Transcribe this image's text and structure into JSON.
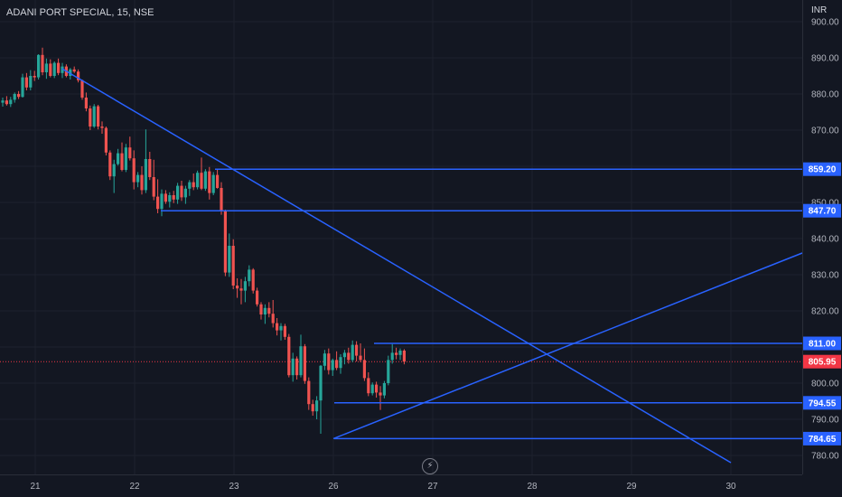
{
  "header": {
    "title": "ADANI PORT SPECIAL, 15, NSE",
    "currency": "INR"
  },
  "icons": {
    "replay": "lightning-icon"
  },
  "colors": {
    "background": "#131722",
    "up": "#26a69a",
    "down": "#ef5350",
    "drawing": "#2962ff",
    "grid": "#1e222d",
    "last_price_line": "#f23645"
  },
  "chart_data": {
    "type": "candlestick",
    "title": "ADANI PORT SPECIAL, 15, NSE",
    "ylabel": "INR",
    "ylim": [
      776,
      903
    ],
    "y_ticks": [
      "780.00",
      "790.00",
      "800.00",
      "810.00",
      "820.00",
      "830.00",
      "840.00",
      "850.00",
      "860.00",
      "870.00",
      "880.00",
      "890.00",
      "900.00"
    ],
    "x_ticks": [
      "21",
      "22",
      "23",
      "26",
      "27",
      "28",
      "29",
      "30"
    ],
    "grid": true,
    "candles": [
      [
        877.6,
        879.0,
        876.5,
        878.2
      ],
      [
        878.2,
        879.4,
        876.8,
        877.2
      ],
      [
        877.2,
        879.2,
        876.4,
        878.4
      ],
      [
        878.4,
        880.4,
        877.6,
        880.0
      ],
      [
        880.0,
        880.8,
        878.6,
        879.2
      ],
      [
        879.2,
        885.6,
        879.0,
        884.6
      ],
      [
        884.6,
        885.8,
        881.0,
        881.8
      ],
      [
        881.8,
        886.6,
        881.0,
        885.0
      ],
      [
        885.0,
        886.4,
        883.6,
        884.6
      ],
      [
        884.6,
        891.0,
        884.0,
        890.8
      ],
      [
        890.8,
        892.8,
        885.2,
        886.0
      ],
      [
        886.0,
        889.8,
        884.2,
        888.4
      ],
      [
        888.4,
        889.6,
        884.6,
        885.0
      ],
      [
        885.0,
        889.0,
        884.4,
        888.6
      ],
      [
        888.6,
        889.8,
        885.2,
        885.8
      ],
      [
        885.8,
        888.6,
        884.4,
        887.6
      ],
      [
        887.6,
        888.2,
        884.6,
        885.0
      ],
      [
        885.0,
        887.2,
        884.0,
        886.8
      ],
      [
        886.8,
        887.6,
        885.8,
        886.2
      ],
      [
        886.2,
        886.8,
        883.2,
        883.8
      ],
      [
        883.8,
        884.0,
        878.4,
        879.0
      ],
      [
        879.0,
        880.4,
        875.2,
        876.0
      ],
      [
        876.0,
        876.8,
        870.0,
        871.0
      ],
      [
        871.0,
        877.2,
        870.6,
        876.6
      ],
      [
        876.6,
        877.0,
        870.2,
        871.0
      ],
      [
        871.0,
        872.4,
        869.0,
        870.6
      ],
      [
        870.6,
        871.0,
        863.0,
        863.8
      ],
      [
        863.8,
        864.4,
        856.2,
        857.2
      ],
      [
        857.2,
        861.8,
        852.6,
        860.6
      ],
      [
        860.6,
        864.8,
        860.2,
        863.6
      ],
      [
        863.6,
        866.6,
        858.6,
        859.0
      ],
      [
        859.0,
        866.2,
        858.4,
        865.2
      ],
      [
        865.2,
        868.2,
        861.6,
        862.2
      ],
      [
        862.2,
        864.4,
        853.6,
        855.6
      ],
      [
        855.6,
        858.4,
        854.2,
        857.6
      ],
      [
        857.6,
        860.0,
        852.2,
        853.4
      ],
      [
        853.4,
        870.2,
        852.6,
        862.0
      ],
      [
        862.0,
        864.0,
        856.2,
        857.0
      ],
      [
        857.0,
        861.8,
        850.6,
        851.6
      ],
      [
        851.6,
        856.4,
        847.0,
        848.2
      ],
      [
        848.2,
        853.6,
        846.2,
        852.4
      ],
      [
        852.4,
        853.4,
        849.6,
        850.2
      ],
      [
        850.2,
        852.8,
        848.6,
        852.0
      ],
      [
        852.0,
        853.2,
        849.8,
        850.8
      ],
      [
        850.8,
        855.4,
        849.6,
        854.6
      ],
      [
        854.6,
        856.0,
        850.4,
        851.4
      ],
      [
        851.4,
        854.6,
        849.6,
        853.8
      ],
      [
        853.8,
        856.2,
        851.8,
        855.6
      ],
      [
        855.6,
        858.0,
        853.4,
        854.2
      ],
      [
        854.2,
        858.8,
        853.6,
        858.2
      ],
      [
        858.2,
        862.4,
        853.4,
        853.8
      ],
      [
        853.8,
        859.2,
        853.2,
        858.6
      ],
      [
        858.6,
        859.8,
        850.8,
        852.6
      ],
      [
        852.6,
        858.4,
        852.0,
        857.6
      ],
      [
        857.6,
        859.2,
        853.8,
        854.0
      ],
      [
        854.0,
        855.6,
        846.6,
        847.6
      ],
      [
        847.6,
        848.0,
        829.6,
        830.6
      ],
      [
        830.6,
        841.4,
        829.4,
        838.0
      ],
      [
        838.0,
        839.8,
        826.0,
        827.0
      ],
      [
        827.0,
        829.0,
        823.6,
        826.2
      ],
      [
        826.2,
        828.8,
        821.8,
        825.6
      ],
      [
        825.6,
        829.4,
        822.4,
        828.2
      ],
      [
        828.2,
        832.6,
        826.8,
        831.4
      ],
      [
        831.4,
        831.8,
        824.8,
        825.6
      ],
      [
        825.6,
        826.4,
        821.2,
        821.8
      ],
      [
        821.8,
        822.4,
        817.6,
        819.0
      ],
      [
        819.0,
        821.8,
        816.4,
        820.8
      ],
      [
        820.8,
        822.4,
        818.2,
        819.2
      ],
      [
        819.2,
        823.0,
        815.4,
        816.6
      ],
      [
        816.6,
        818.0,
        813.2,
        814.6
      ],
      [
        814.6,
        816.6,
        811.8,
        815.8
      ],
      [
        815.8,
        816.4,
        812.0,
        812.8
      ],
      [
        812.8,
        813.6,
        801.6,
        802.2
      ],
      [
        802.2,
        808.4,
        800.4,
        806.8
      ],
      [
        806.8,
        807.4,
        801.0,
        802.2
      ],
      [
        802.2,
        813.4,
        801.6,
        810.2
      ],
      [
        810.2,
        810.8,
        799.8,
        800.6
      ],
      [
        800.6,
        801.6,
        792.6,
        794.2
      ],
      [
        794.2,
        795.4,
        791.0,
        792.2
      ],
      [
        792.2,
        796.4,
        790.0,
        795.2
      ],
      [
        795.2,
        805.0,
        786.0,
        804.8
      ],
      [
        804.8,
        809.2,
        803.6,
        808.2
      ],
      [
        808.2,
        809.6,
        802.4,
        803.6
      ],
      [
        803.6,
        806.8,
        802.0,
        806.4
      ],
      [
        806.4,
        808.8,
        803.6,
        804.2
      ],
      [
        804.2,
        808.0,
        802.6,
        807.2
      ],
      [
        807.2,
        809.2,
        805.2,
        808.4
      ],
      [
        808.4,
        809.8,
        805.4,
        806.4
      ],
      [
        806.4,
        811.8,
        805.8,
        810.6
      ],
      [
        810.6,
        811.6,
        806.0,
        807.6
      ],
      [
        807.6,
        811.0,
        805.8,
        806.4
      ],
      [
        806.4,
        809.6,
        800.6,
        801.4
      ],
      [
        801.4,
        803.0,
        796.4,
        797.2
      ],
      [
        797.2,
        800.2,
        796.6,
        799.6
      ],
      [
        799.6,
        800.4,
        796.0,
        797.4
      ],
      [
        797.4,
        799.2,
        792.6,
        796.6
      ],
      [
        796.6,
        800.6,
        795.8,
        800.0
      ],
      [
        800.0,
        807.6,
        799.4,
        806.4
      ],
      [
        806.4,
        810.8,
        805.4,
        808.4
      ],
      [
        808.4,
        809.8,
        806.6,
        807.8
      ],
      [
        807.8,
        809.6,
        806.4,
        809.0
      ],
      [
        809.0,
        809.4,
        805.2,
        805.95
      ]
    ],
    "horizontal_levels": [
      {
        "price": 859.2,
        "label": "859.20"
      },
      {
        "price": 847.7,
        "label": "847.70"
      },
      {
        "price": 811.0,
        "label": "811.00"
      },
      {
        "price": 794.55,
        "label": "794.55"
      },
      {
        "price": 784.65,
        "label": "784.65"
      }
    ],
    "trend_lines": [
      {
        "from": [
          21.27,
          887.0
        ],
        "to": [
          30.0,
          778.0
        ]
      },
      {
        "from": [
          26.0,
          784.65
        ],
        "to": [
          30.8,
          836.0
        ]
      }
    ],
    "last_price": {
      "price": 805.95,
      "label": "805.95"
    }
  }
}
